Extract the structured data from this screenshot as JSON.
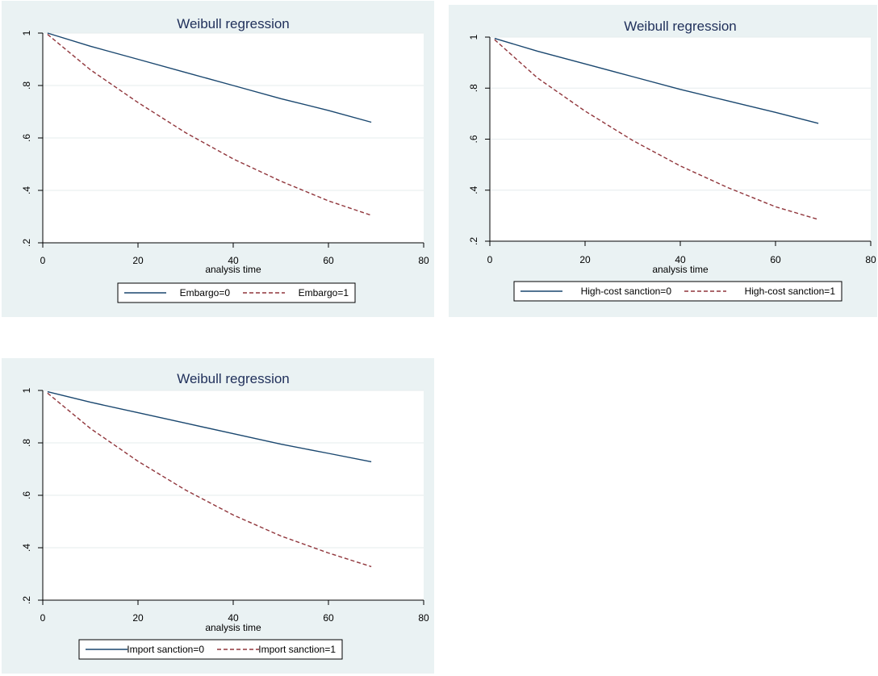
{
  "colors": {
    "panel_bg": "#eaf2f3",
    "plot_bg": "#ffffff",
    "grid": "#e6ecee",
    "series0": "#1a476f",
    "series1": "#90353b",
    "title": "#1f2f5a"
  },
  "chart_data": [
    {
      "type": "line",
      "title": "Weibull regression",
      "xlabel": "analysis time",
      "ylabel": "",
      "xlim": [
        0,
        80
      ],
      "ylim": [
        0.2,
        1
      ],
      "xticks": [
        "0",
        "20",
        "40",
        "60",
        "80"
      ],
      "yticks": [
        "1",
        ".8",
        ".6",
        ".4",
        ".2"
      ],
      "grid": true,
      "legend_position": "bottom",
      "series": [
        {
          "name": "Embargo=0",
          "style": "solid",
          "x": [
            1,
            10,
            20,
            30,
            40,
            50,
            60,
            69
          ],
          "y": [
            1.0,
            0.95,
            0.9,
            0.85,
            0.8,
            0.75,
            0.705,
            0.66
          ]
        },
        {
          "name": "Embargo=1",
          "style": "dashed",
          "x": [
            1,
            10,
            20,
            30,
            40,
            50,
            60,
            69
          ],
          "y": [
            0.995,
            0.86,
            0.735,
            0.62,
            0.52,
            0.435,
            0.36,
            0.305
          ]
        }
      ]
    },
    {
      "type": "line",
      "title": "Weibull regression",
      "xlabel": "analysis time",
      "ylabel": "",
      "xlim": [
        0,
        80
      ],
      "ylim": [
        0.2,
        1
      ],
      "xticks": [
        "0",
        "20",
        "40",
        "60",
        "80"
      ],
      "yticks": [
        "1",
        ".8",
        ".6",
        ".4",
        ".2"
      ],
      "grid": true,
      "legend_position": "bottom",
      "series": [
        {
          "name": "High-cost sanction=0",
          "style": "solid",
          "x": [
            1,
            10,
            20,
            30,
            40,
            50,
            60,
            69
          ],
          "y": [
            0.995,
            0.945,
            0.895,
            0.845,
            0.795,
            0.75,
            0.705,
            0.662
          ]
        },
        {
          "name": "High-cost sanction=1",
          "style": "dashed",
          "x": [
            1,
            10,
            20,
            30,
            40,
            50,
            60,
            69
          ],
          "y": [
            0.99,
            0.84,
            0.71,
            0.595,
            0.495,
            0.41,
            0.335,
            0.285
          ]
        }
      ]
    },
    {
      "type": "line",
      "title": "Weibull regression",
      "xlabel": "analysis time",
      "ylabel": "",
      "xlim": [
        0,
        80
      ],
      "ylim": [
        0.2,
        1
      ],
      "xticks": [
        "0",
        "20",
        "40",
        "60",
        "80"
      ],
      "yticks": [
        "1",
        ".8",
        ".6",
        ".4",
        ".2"
      ],
      "grid": true,
      "legend_position": "bottom",
      "series": [
        {
          "name": "Import sanction=0",
          "style": "solid",
          "x": [
            1,
            10,
            20,
            30,
            40,
            50,
            60,
            69
          ],
          "y": [
            0.995,
            0.955,
            0.915,
            0.875,
            0.835,
            0.795,
            0.76,
            0.728
          ]
        },
        {
          "name": "Import sanction=1",
          "style": "dashed",
          "x": [
            1,
            10,
            20,
            30,
            40,
            50,
            60,
            69
          ],
          "y": [
            0.99,
            0.855,
            0.73,
            0.62,
            0.525,
            0.445,
            0.38,
            0.328
          ]
        }
      ]
    }
  ]
}
